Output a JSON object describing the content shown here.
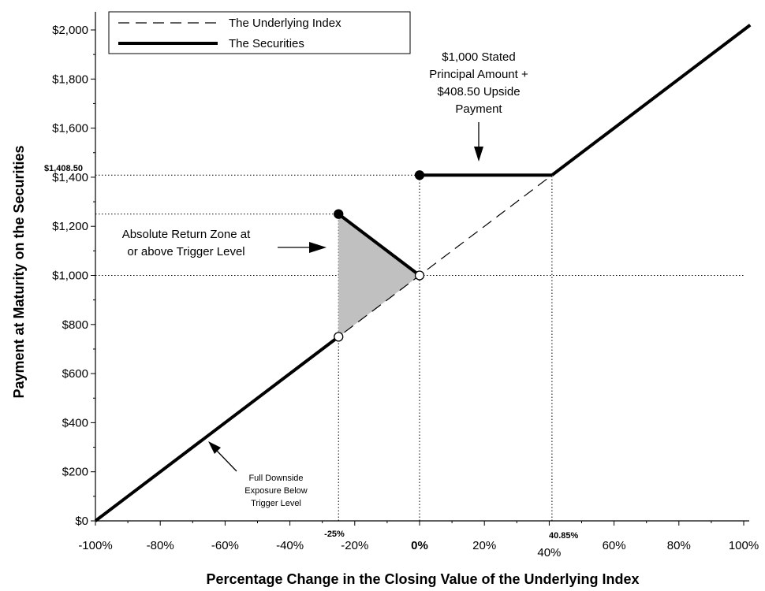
{
  "chart_data": {
    "type": "line",
    "xlabel": "Percentage Change in the Closing Value of the Underlying Index",
    "ylabel": "Payment at Maturity on the Securities",
    "xlim": [
      -100,
      100
    ],
    "ylim": [
      0,
      2000
    ],
    "x_ticks": [
      {
        "value": -100,
        "label": "-100%"
      },
      {
        "value": -80,
        "label": "-80%"
      },
      {
        "value": -60,
        "label": "-60%"
      },
      {
        "value": -40,
        "label": "-40%"
      },
      {
        "value": -20,
        "label": "-20%"
      },
      {
        "value": 0,
        "label": "0%"
      },
      {
        "value": 20,
        "label": "20%"
      },
      {
        "value": 40,
        "label": "40%"
      },
      {
        "value": 60,
        "label": "60%"
      },
      {
        "value": 80,
        "label": "80%"
      },
      {
        "value": 100,
        "label": "100%"
      }
    ],
    "y_ticks": [
      {
        "value": 0,
        "label": "$0"
      },
      {
        "value": 200,
        "label": "$200"
      },
      {
        "value": 400,
        "label": "$400"
      },
      {
        "value": 600,
        "label": "$600"
      },
      {
        "value": 800,
        "label": "$800"
      },
      {
        "value": 1000,
        "label": "$1,000"
      },
      {
        "value": 1200,
        "label": "$1,200"
      },
      {
        "value": 1400,
        "label": "$1,400"
      },
      {
        "value": 1600,
        "label": "$1,600"
      },
      {
        "value": 1800,
        "label": "$1,800"
      },
      {
        "value": 2000,
        "label": "$2,000"
      }
    ],
    "legend_position": "top-left",
    "series": [
      {
        "name": "The Underlying Index",
        "style": "dashed",
        "color": "#000000",
        "x": [
          -100,
          100
        ],
        "y": [
          0,
          2000
        ]
      },
      {
        "name": "The Securities",
        "style": "solid-thick",
        "color": "#000000",
        "segments": [
          {
            "x": [
              -100,
              -25
            ],
            "y": [
              0,
              750
            ]
          },
          {
            "x": [
              -25,
              0
            ],
            "y": [
              1250,
              1000
            ]
          },
          {
            "x": [
              0,
              40.85
            ],
            "y": [
              1408.5,
              1408.5
            ]
          },
          {
            "x": [
              40.85,
              102
            ],
            "y": [
              1408.5,
              2020
            ]
          }
        ]
      }
    ],
    "markers": [
      {
        "x": -25,
        "y": 1250,
        "fill": "filled"
      },
      {
        "x": -25,
        "y": 750,
        "fill": "open"
      },
      {
        "x": 0,
        "y": 1000,
        "fill": "open"
      },
      {
        "x": 0,
        "y": 1408.5,
        "fill": "filled"
      }
    ],
    "shaded_region": {
      "points": [
        [
          -25,
          1250
        ],
        [
          0,
          1000
        ],
        [
          -25,
          750
        ]
      ],
      "color": "#c0c0c0"
    },
    "reference_lines": [
      {
        "orientation": "horizontal",
        "y": 1408.5,
        "x_from": -100,
        "x_to": 40.85
      },
      {
        "orientation": "horizontal",
        "y": 1250,
        "x_from": -100,
        "x_to": -25
      },
      {
        "orientation": "horizontal",
        "y": 1000,
        "x_from": -100,
        "x_to": 100
      },
      {
        "orientation": "vertical",
        "x": -25,
        "y_from": 0,
        "y_to": 1250
      },
      {
        "orientation": "vertical",
        "x": 0,
        "y_from": 0,
        "y_to": 1408.5
      },
      {
        "orientation": "vertical",
        "x": 40.85,
        "y_from": 0,
        "y_to": 1408.5
      }
    ],
    "annotations": {
      "upside_lines": [
        "$1,000 Stated",
        "Principal Amount +",
        "$408.50 Upside",
        "Payment"
      ],
      "absolute_return_lines": [
        "Absolute Return Zone at",
        "or above Trigger Level"
      ],
      "downside_lines": [
        "Full Downside",
        "Exposure Below",
        "Trigger Level"
      ],
      "y_marker_label": "$1,408.50",
      "trigger_label": "-25%",
      "cap_label": "40.85%"
    }
  }
}
